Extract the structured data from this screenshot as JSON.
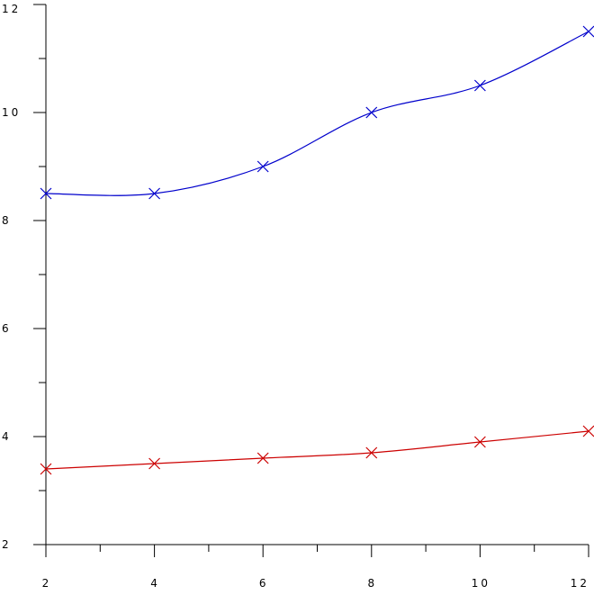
{
  "chart_data": {
    "type": "line",
    "x": [
      2,
      4,
      6,
      8,
      10,
      12
    ],
    "series": [
      {
        "color": "#0000cc",
        "values": [
          8.5,
          8.5,
          9,
          10,
          10.5,
          11.5
        ]
      },
      {
        "color": "#cc0000",
        "values": [
          3.4,
          3.5,
          3.6,
          3.7,
          3.9,
          4.1
        ]
      }
    ],
    "xlim": [
      2,
      12
    ],
    "ylim": [
      2,
      12
    ],
    "xticks": [
      2,
      4,
      6,
      8,
      10,
      12
    ],
    "yticks": [
      2,
      4,
      6,
      8,
      10,
      12
    ],
    "xminorticks": [
      3,
      5,
      7,
      9,
      11
    ],
    "yminorticks": [
      3,
      5,
      7,
      9,
      11
    ],
    "marker": "x",
    "smooth": true
  }
}
